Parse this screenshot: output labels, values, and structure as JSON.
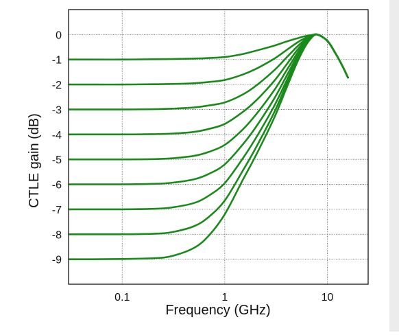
{
  "chart_data": {
    "type": "line",
    "title": "",
    "xlabel": "Frequency (GHz)",
    "ylabel": "CTLE gain (dB)",
    "x_scale": "log",
    "xlim": [
      0.03,
      25
    ],
    "ylim": [
      -10,
      1
    ],
    "x_ticks": [
      0.1,
      1,
      10
    ],
    "x_tick_labels": [
      "0.1",
      "1",
      "10"
    ],
    "y_ticks": [
      0,
      -1,
      -2,
      -3,
      -4,
      -5,
      -6,
      -7,
      -8,
      -9
    ],
    "y_tick_labels": [
      "0",
      "-1",
      "-2",
      "-3",
      "-4",
      "-5",
      "-6",
      "-7",
      "-8",
      "-9"
    ],
    "grid": true,
    "legend": "none",
    "line_color": "#1a8a1a",
    "x": [
      0.03,
      0.05,
      0.1,
      0.2,
      0.3,
      0.5,
      0.7,
      1.0,
      1.5,
      2.0,
      3.0,
      4.0,
      5.0,
      6.0,
      7.0,
      8.0,
      10.0,
      12.0,
      14.0,
      16.0
    ],
    "series": [
      {
        "values": [
          -1.0,
          -1.0,
          -1.0,
          -0.99,
          -0.98,
          -0.96,
          -0.94,
          -0.9,
          -0.78,
          -0.65,
          -0.45,
          -0.28,
          -0.16,
          -0.07,
          -0.02,
          0.0,
          -0.25,
          -0.75,
          -1.25,
          -1.75
        ]
      },
      {
        "values": [
          -2.0,
          -2.0,
          -2.0,
          -1.99,
          -1.98,
          -1.95,
          -1.9,
          -1.82,
          -1.6,
          -1.38,
          -0.98,
          -0.62,
          -0.34,
          -0.15,
          -0.04,
          0.0,
          -0.25,
          -0.75,
          -1.25,
          -1.75
        ]
      },
      {
        "values": [
          -3.0,
          -3.0,
          -3.0,
          -2.99,
          -2.97,
          -2.92,
          -2.84,
          -2.72,
          -2.4,
          -2.06,
          -1.45,
          -0.92,
          -0.51,
          -0.22,
          -0.06,
          0.0,
          -0.25,
          -0.75,
          -1.25,
          -1.75
        ]
      },
      {
        "values": [
          -4.0,
          -4.0,
          -4.0,
          -3.99,
          -3.97,
          -3.9,
          -3.78,
          -3.58,
          -3.1,
          -2.66,
          -1.88,
          -1.2,
          -0.66,
          -0.28,
          -0.07,
          0.0,
          -0.25,
          -0.75,
          -1.25,
          -1.75
        ]
      },
      {
        "values": [
          -5.0,
          -5.0,
          -5.0,
          -4.99,
          -4.96,
          -4.86,
          -4.7,
          -4.42,
          -3.8,
          -3.22,
          -2.26,
          -1.44,
          -0.8,
          -0.34,
          -0.08,
          0.0,
          -0.25,
          -0.75,
          -1.25,
          -1.75
        ]
      },
      {
        "values": [
          -6.0,
          -6.0,
          -6.0,
          -5.98,
          -5.94,
          -5.8,
          -5.58,
          -5.2,
          -4.4,
          -3.72,
          -2.6,
          -1.66,
          -0.92,
          -0.4,
          -0.1,
          0.0,
          -0.25,
          -0.75,
          -1.25,
          -1.75
        ]
      },
      {
        "values": [
          -7.0,
          -7.0,
          -7.0,
          -6.98,
          -6.93,
          -6.75,
          -6.45,
          -5.95,
          -4.96,
          -4.16,
          -2.9,
          -1.85,
          -1.02,
          -0.44,
          -0.11,
          0.0,
          -0.25,
          -0.75,
          -1.25,
          -1.75
        ]
      },
      {
        "values": [
          -8.0,
          -8.0,
          -8.0,
          -7.98,
          -7.92,
          -7.68,
          -7.3,
          -6.65,
          -5.45,
          -4.55,
          -3.16,
          -2.0,
          -1.1,
          -0.48,
          -0.12,
          0.0,
          -0.25,
          -0.75,
          -1.25,
          -1.75
        ]
      },
      {
        "values": [
          -9.0,
          -9.0,
          -8.99,
          -8.96,
          -8.88,
          -8.55,
          -8.05,
          -7.2,
          -5.82,
          -4.86,
          -3.38,
          -2.14,
          -1.18,
          -0.52,
          -0.13,
          0.0,
          -0.25,
          -0.75,
          -1.25,
          -1.75
        ]
      }
    ]
  }
}
